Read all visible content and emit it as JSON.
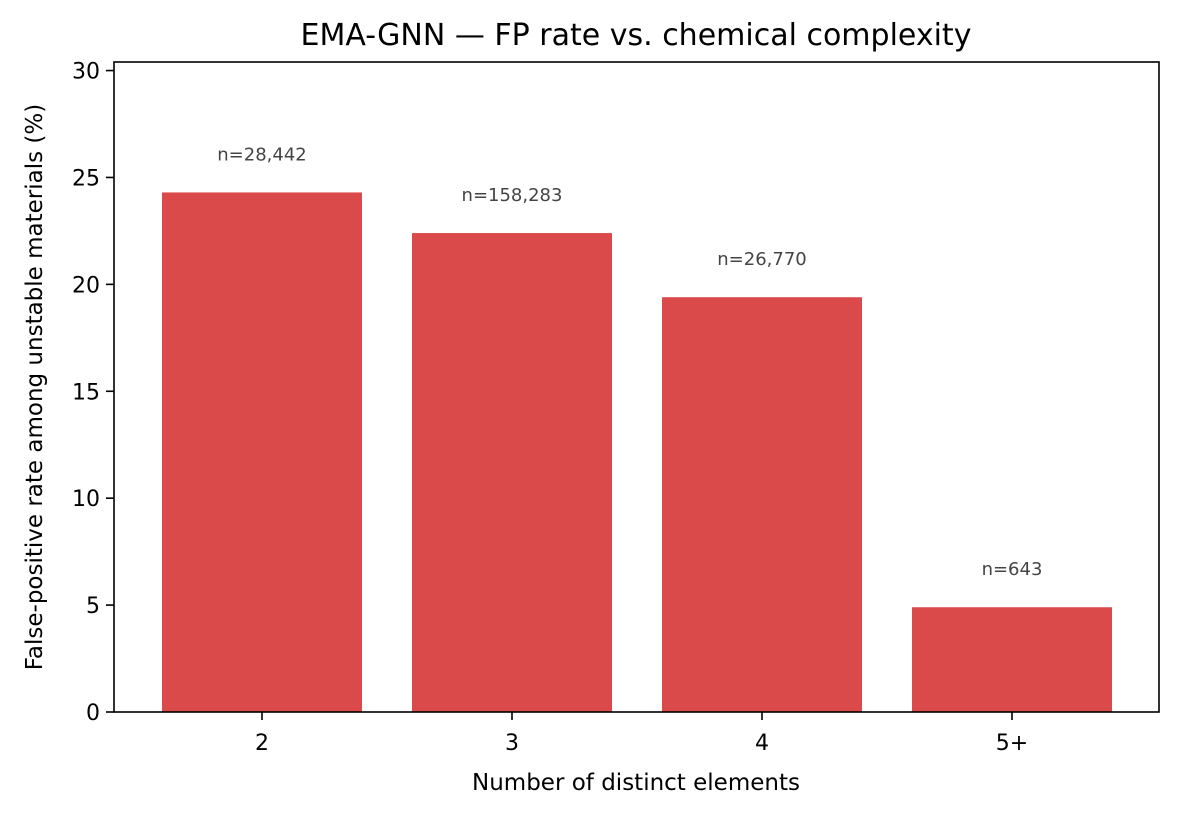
{
  "chart_data": {
    "type": "bar",
    "title": "EMA-GNN — FP rate vs. chemical complexity",
    "xlabel": "Number of distinct elements",
    "ylabel": "False-positive rate among unstable materials (%)",
    "categories": [
      "2",
      "3",
      "4",
      "5+"
    ],
    "values": [
      24.3,
      22.4,
      19.4,
      4.9
    ],
    "annotations": [
      "n=28,442",
      "n=158,283",
      "n=26,770",
      "n=643"
    ],
    "ylim": [
      0,
      30.4
    ],
    "yticks": [
      0,
      5,
      10,
      15,
      20,
      25,
      30
    ],
    "bar_color": "#db4a4a",
    "grid": false,
    "legend": "none"
  }
}
